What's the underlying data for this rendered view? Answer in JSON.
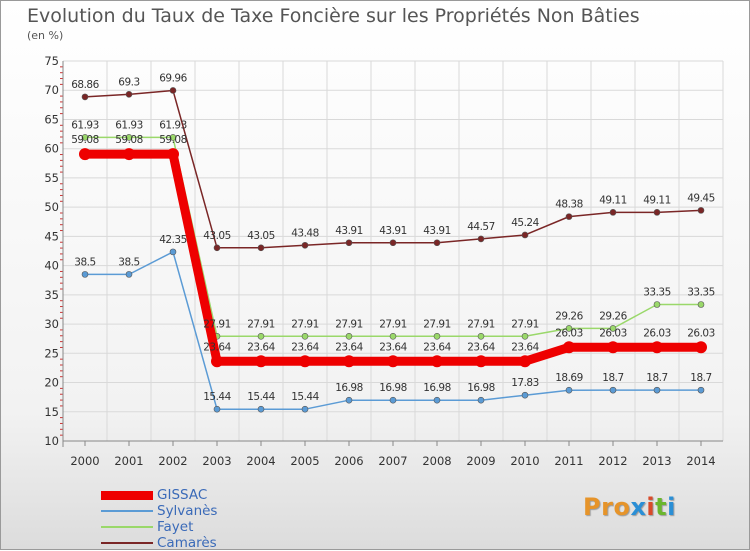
{
  "header": {
    "title": "Evolution du Taux de Taxe Foncière sur les Propriétés Non Bâties",
    "subtitle": "(en %)"
  },
  "logo": {
    "text": "Proxiti",
    "colors": [
      "#e6942a",
      "#e6942a",
      "#e6942a",
      "#2a8fd6",
      "#d94a2a",
      "#6bb62e",
      "#2a8fd6"
    ]
  },
  "chart_data": {
    "type": "line",
    "title": "Evolution du Taux de Taxe Foncière sur les Propriétés Non Bâties",
    "ylabel": "(en %)",
    "xlabel": "",
    "ylim": [
      10,
      75
    ],
    "yticks": [
      10,
      15,
      20,
      25,
      30,
      35,
      40,
      45,
      50,
      55,
      60,
      65,
      70,
      75
    ],
    "categories": [
      "2000",
      "2001",
      "2002",
      "2003",
      "2004",
      "2005",
      "2006",
      "2007",
      "2008",
      "2009",
      "2010",
      "2011",
      "2012",
      "2013",
      "2014"
    ],
    "grid": true,
    "legend_position": "bottom-left",
    "series": [
      {
        "name": "GISSAC",
        "color": "#ee0000",
        "values": [
          59.08,
          59.08,
          59.08,
          23.64,
          23.64,
          23.64,
          23.64,
          23.64,
          23.64,
          23.64,
          23.64,
          26.03,
          26.03,
          26.03,
          26.03
        ],
        "labels": [
          "59.08",
          "59.08",
          "59.08",
          "23.64",
          "23.64",
          "23.64",
          "23.64",
          "23.64",
          "23.64",
          "23.64",
          "23.64",
          "26.03",
          "26.03",
          "26.03",
          "26.03"
        ]
      },
      {
        "name": "Sylvanès",
        "color": "#5b9bd5",
        "values": [
          38.5,
          38.5,
          42.35,
          15.44,
          15.44,
          15.44,
          16.98,
          16.98,
          16.98,
          16.98,
          17.83,
          18.69,
          18.7,
          18.7,
          18.7
        ],
        "labels": [
          "38.5",
          "38.5",
          "42.35",
          "15.44",
          "15.44",
          "15.44",
          "16.98",
          "16.98",
          "16.98",
          "16.98",
          "17.83",
          "18.69",
          "18.7",
          "18.7",
          "18.7"
        ]
      },
      {
        "name": "Fayet",
        "color": "#9ad86a",
        "values": [
          61.93,
          61.93,
          61.93,
          27.91,
          27.91,
          27.91,
          27.91,
          27.91,
          27.91,
          27.91,
          27.91,
          29.26,
          29.26,
          33.35,
          33.35
        ],
        "labels": [
          "61.93",
          "61.93",
          "61.93",
          "27.91",
          "27.91",
          "27.91",
          "27.91",
          "27.91",
          "27.91",
          "27.91",
          "27.91",
          "29.26",
          "29.26",
          "33.35",
          "33.35"
        ]
      },
      {
        "name": "Camarès",
        "color": "#7a2626",
        "values": [
          68.86,
          69.3,
          69.96,
          43.05,
          43.05,
          43.48,
          43.91,
          43.91,
          43.91,
          44.57,
          45.24,
          48.38,
          49.11,
          49.11,
          49.45
        ],
        "labels": [
          "68.86",
          "69.3",
          "69.96",
          "43.05",
          "43.05",
          "43.48",
          "43.91",
          "43.91",
          "43.91",
          "44.57",
          "45.24",
          "48.38",
          "49.11",
          "49.11",
          "49.45"
        ]
      }
    ]
  }
}
